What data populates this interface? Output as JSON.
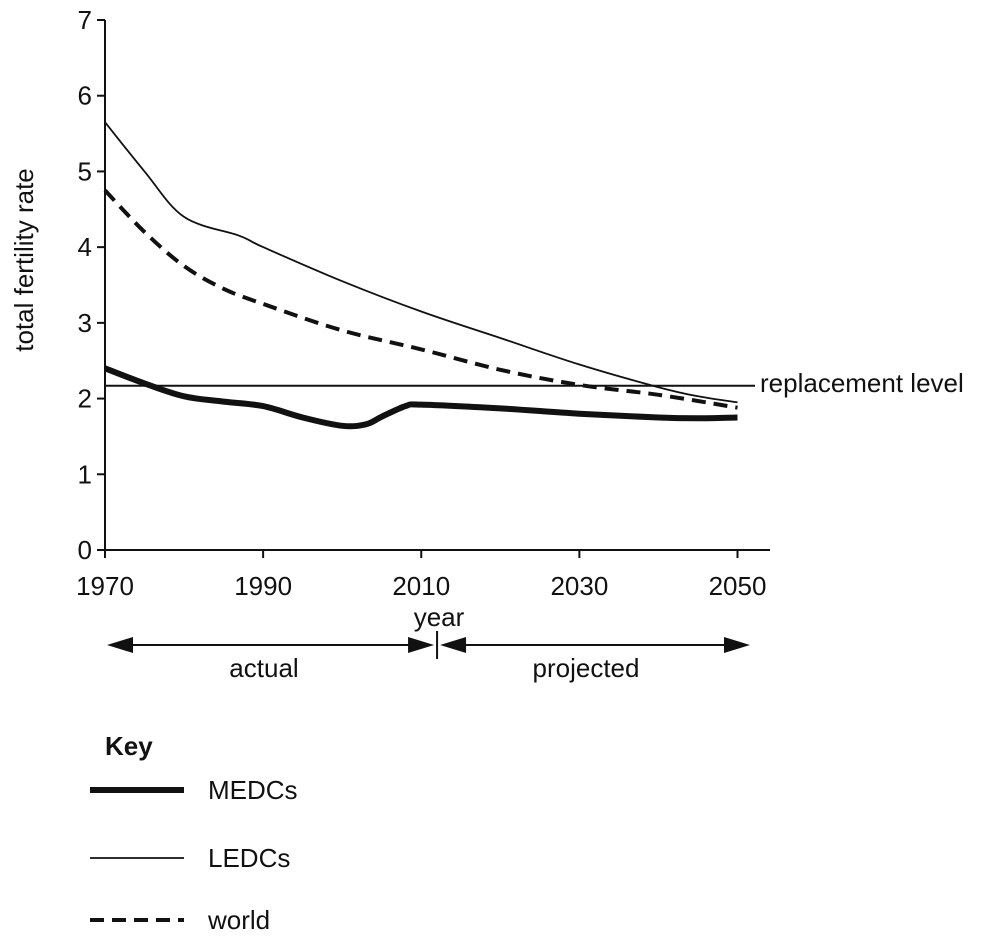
{
  "chart_data": {
    "type": "line",
    "xlabel": "year",
    "ylabel": "total fertility rate",
    "xlim": [
      1970,
      2055
    ],
    "ylim": [
      0,
      7
    ],
    "x_ticks": [
      "1970",
      "1990",
      "2010",
      "2030",
      "2050"
    ],
    "y_ticks": [
      "0",
      "1",
      "2",
      "3",
      "4",
      "5",
      "6",
      "7"
    ],
    "replacement_level": {
      "label": "replacement level",
      "value": 2.17
    },
    "periods": {
      "actual": "actual",
      "projected": "projected",
      "boundary_year": 2012
    },
    "series": [
      {
        "name": "MEDCs",
        "style": "thick",
        "color": "#111111",
        "points": [
          [
            1970,
            2.4
          ],
          [
            1975,
            2.2
          ],
          [
            1980,
            2.03
          ],
          [
            1985,
            1.96
          ],
          [
            1990,
            1.9
          ],
          [
            1995,
            1.75
          ],
          [
            2000,
            1.64
          ],
          [
            2003,
            1.66
          ],
          [
            2005,
            1.76
          ],
          [
            2008,
            1.9
          ],
          [
            2010,
            1.92
          ],
          [
            2020,
            1.87
          ],
          [
            2030,
            1.8
          ],
          [
            2040,
            1.75
          ],
          [
            2045,
            1.74
          ],
          [
            2050,
            1.75
          ]
        ]
      },
      {
        "name": "LEDCs",
        "style": "thin",
        "color": "#111111",
        "points": [
          [
            1970,
            5.65
          ],
          [
            1975,
            5.0
          ],
          [
            1980,
            4.4
          ],
          [
            1987,
            4.15
          ],
          [
            1990,
            4.0
          ],
          [
            2000,
            3.55
          ],
          [
            2010,
            3.15
          ],
          [
            2020,
            2.8
          ],
          [
            2030,
            2.45
          ],
          [
            2040,
            2.15
          ],
          [
            2045,
            2.03
          ],
          [
            2050,
            1.95
          ]
        ]
      },
      {
        "name": "world",
        "style": "dashed",
        "color": "#111111",
        "points": [
          [
            1970,
            4.75
          ],
          [
            1975,
            4.2
          ],
          [
            1980,
            3.75
          ],
          [
            1985,
            3.45
          ],
          [
            1990,
            3.25
          ],
          [
            2000,
            2.9
          ],
          [
            2010,
            2.65
          ],
          [
            2020,
            2.38
          ],
          [
            2030,
            2.18
          ],
          [
            2040,
            2.05
          ],
          [
            2050,
            1.88
          ]
        ]
      }
    ],
    "legend_title": "Key",
    "legend_position": "bottom-left",
    "grid": false
  }
}
